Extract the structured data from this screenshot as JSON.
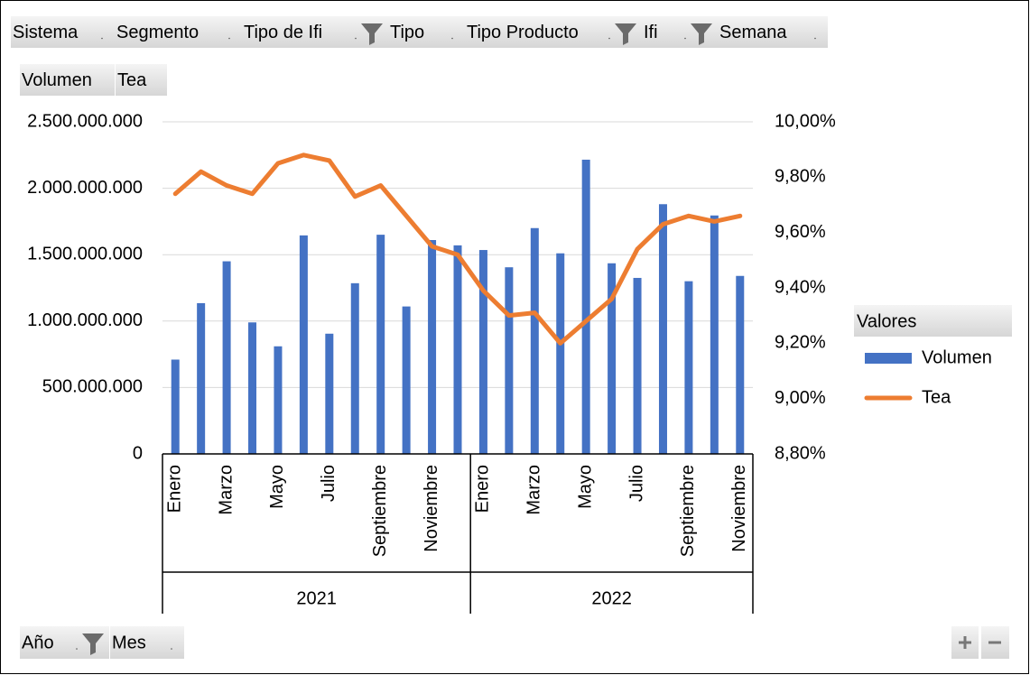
{
  "filters": [
    {
      "label": "Sistema",
      "filtered": false
    },
    {
      "label": "Segmento",
      "filtered": false
    },
    {
      "label": "Tipo de Ifi",
      "filtered": true
    },
    {
      "label": "Tipo",
      "filtered": false
    },
    {
      "label": "Tipo Producto",
      "filtered": true
    },
    {
      "label": "Ifi",
      "filtered": true
    },
    {
      "label": "Semana",
      "filtered": false
    }
  ],
  "value_fields": [
    "Volumen",
    "Tea"
  ],
  "axis_fields": [
    {
      "label": "Año",
      "filtered": true
    },
    {
      "label": "Mes",
      "filtered": false
    }
  ],
  "chart_data": {
    "type": "bar_line",
    "categories": [
      "Enero",
      null,
      "Marzo",
      null,
      "Mayo",
      null,
      "Julio",
      null,
      "Septiembre",
      null,
      "Noviembre",
      null,
      "Enero",
      null,
      "Marzo",
      null,
      "Mayo",
      null,
      "Julio",
      null,
      "Septiembre",
      null,
      "Noviembre"
    ],
    "groups": [
      {
        "label": "2021",
        "count": 12
      },
      {
        "label": "2022",
        "count": 11
      }
    ],
    "series": [
      {
        "name": "Volumen",
        "type": "bar",
        "color": "#4472c4",
        "values": [
          710000000,
          1135000000,
          1450000000,
          990000000,
          810000000,
          1645000000,
          905000000,
          1285000000,
          1650000000,
          1110000000,
          1610000000,
          1570000000,
          1535000000,
          1405000000,
          1700000000,
          1510000000,
          2215000000,
          1435000000,
          1325000000,
          1880000000,
          1300000000,
          1795000000,
          1340000000
        ]
      },
      {
        "name": "Tea",
        "type": "line",
        "axis": "y2",
        "color": "#ed7d31",
        "values": [
          9.74,
          9.82,
          9.77,
          9.74,
          9.85,
          9.88,
          9.86,
          9.73,
          9.77,
          9.66,
          9.55,
          9.52,
          9.39,
          9.3,
          9.31,
          9.2,
          9.28,
          9.36,
          9.54,
          9.63,
          9.66,
          9.64,
          9.66
        ]
      }
    ],
    "ylim": [
      0,
      2500000000
    ],
    "yticks": [
      0,
      {
        "value": 500000000,
        "label": "500.000.000"
      },
      {
        "value": 1000000000,
        "label": "1.000.000.000"
      },
      {
        "value": 1500000000,
        "label": "1.500.000.000"
      },
      {
        "value": 2000000000,
        "label": "2.000.000.000"
      },
      {
        "value": 2500000000,
        "label": "2.500.000.000"
      }
    ],
    "y2lim": [
      8.8,
      10
    ],
    "y2ticks": [
      {
        "value": 8.8,
        "label": "8,80%"
      },
      {
        "value": 9.0,
        "label": "9,00%"
      },
      {
        "value": 9.2,
        "label": "9,20%"
      },
      {
        "value": 9.4,
        "label": "9,40%"
      },
      {
        "value": 9.6,
        "label": "9,60%"
      },
      {
        "value": 9.8,
        "label": "9,80%"
      },
      {
        "value": 10,
        "label": "10,00%"
      }
    ],
    "grid": true,
    "legend_title": "Valores",
    "legend": "right"
  }
}
